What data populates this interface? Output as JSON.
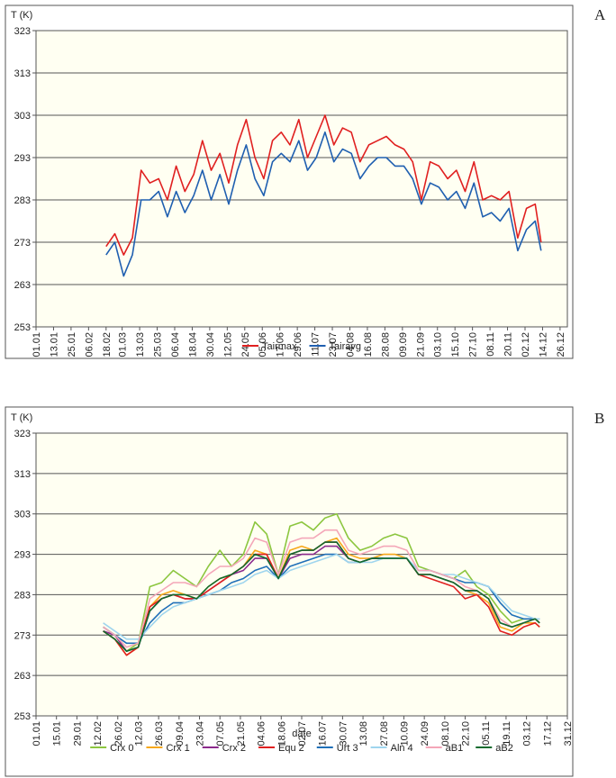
{
  "chart_data": [
    {
      "type": "line",
      "label": "A",
      "ylabel": "T (K)",
      "x": [
        "18.02",
        "24.02",
        "02.03",
        "08.03",
        "14.03",
        "20.03",
        "26.03",
        "01.04",
        "07.04",
        "13.04",
        "19.04",
        "25.04",
        "01.05",
        "07.05",
        "13.05",
        "19.05",
        "25.05",
        "31.05",
        "06.06",
        "12.06",
        "18.06",
        "24.06",
        "30.06",
        "06.07",
        "12.07",
        "18.07",
        "24.07",
        "30.07",
        "05.08",
        "11.08",
        "17.08",
        "23.08",
        "29.08",
        "04.09",
        "10.09",
        "16.09",
        "22.09",
        "28.09",
        "04.10",
        "10.10",
        "16.10",
        "22.10",
        "28.10",
        "03.11",
        "09.11",
        "15.11",
        "21.11",
        "27.11",
        "03.12",
        "09.12",
        "13.12"
      ],
      "series": [
        {
          "name": "Tairmax",
          "color": "#e02020",
          "values": [
            272,
            275,
            270,
            274,
            290,
            287,
            288,
            283,
            291,
            285,
            289,
            297,
            290,
            294,
            287,
            296,
            302,
            293,
            288,
            297,
            299,
            296,
            302,
            293,
            298,
            303,
            296,
            300,
            299,
            292,
            296,
            297,
            298,
            296,
            295,
            292,
            283,
            292,
            291,
            288,
            290,
            285,
            292,
            283,
            284,
            283,
            285,
            274,
            281,
            282,
            273
          ]
        },
        {
          "name": "Tairavg",
          "color": "#1f5fb0",
          "values": [
            270,
            273,
            265,
            270,
            283,
            283,
            285,
            279,
            285,
            280,
            284,
            290,
            283,
            289,
            282,
            290,
            296,
            288,
            284,
            292,
            294,
            292,
            297,
            290,
            293,
            299,
            292,
            295,
            294,
            288,
            291,
            293,
            293,
            291,
            291,
            288,
            282,
            287,
            286,
            283,
            285,
            281,
            287,
            279,
            280,
            278,
            281,
            271,
            276,
            278,
            271
          ]
        }
      ],
      "xlim": [
        "01.01",
        "31.12"
      ],
      "xticks": [
        "01.01",
        "13.01",
        "25.01",
        "06.02",
        "18.02",
        "01.03",
        "13.03",
        "25.03",
        "06.04",
        "18.04",
        "30.04",
        "12.05",
        "24.05",
        "05.06",
        "17.06",
        "29.06",
        "11.07",
        "23.07",
        "04.08",
        "16.08",
        "28.08",
        "09.09",
        "21.09",
        "03.10",
        "15.10",
        "27.10",
        "08.11",
        "20.11",
        "02.12",
        "14.12",
        "26.12"
      ],
      "ylim": [
        253,
        323
      ],
      "yticks": [
        253,
        263,
        273,
        283,
        293,
        303,
        313,
        323
      ],
      "grid": true
    },
    {
      "type": "line",
      "label": "B",
      "ylabel": "T (K)",
      "xlabel": "date",
      "x": [
        "16.02",
        "24.02",
        "04.03",
        "12.03",
        "20.03",
        "28.03",
        "05.04",
        "13.04",
        "21.04",
        "29.04",
        "07.05",
        "15.05",
        "23.05",
        "31.05",
        "08.06",
        "16.06",
        "24.06",
        "02.07",
        "10.07",
        "18.07",
        "26.07",
        "03.08",
        "11.08",
        "19.08",
        "27.08",
        "04.09",
        "12.09",
        "20.09",
        "28.09",
        "06.10",
        "14.10",
        "22.10",
        "30.10",
        "07.11",
        "15.11",
        "23.11",
        "01.12",
        "09.12",
        "12.12"
      ],
      "series": [
        {
          "name": "Crx 0",
          "color": "#8cc63f",
          "values": [
            275,
            273,
            269,
            271,
            285,
            286,
            289,
            287,
            285,
            290,
            294,
            290,
            293,
            301,
            298,
            288,
            300,
            301,
            299,
            302,
            303,
            297,
            294,
            295,
            297,
            298,
            297,
            290,
            289,
            288,
            287,
            289,
            285,
            283,
            279,
            276,
            277,
            277,
            276
          ]
        },
        {
          "name": "Crx 1",
          "color": "#f7a81b",
          "values": [
            274,
            272,
            268,
            270,
            280,
            283,
            284,
            283,
            282,
            285,
            287,
            288,
            290,
            294,
            293,
            287,
            294,
            295,
            294,
            296,
            297,
            293,
            292,
            292,
            293,
            293,
            292,
            288,
            288,
            287,
            286,
            284,
            283,
            281,
            275,
            274,
            276,
            276,
            275
          ]
        },
        {
          "name": "Crx 2",
          "color": "#8b2a8c",
          "values": [
            274,
            273,
            269,
            270,
            279,
            282,
            283,
            282,
            282,
            284,
            286,
            288,
            289,
            292,
            292,
            287,
            292,
            293,
            293,
            295,
            295,
            292,
            291,
            292,
            292,
            292,
            292,
            288,
            288,
            287,
            286,
            284,
            284,
            282,
            276,
            275,
            276,
            277,
            276
          ]
        },
        {
          "name": "Equ 2",
          "color": "#e02020",
          "values": [
            274,
            272,
            268,
            270,
            280,
            282,
            283,
            282,
            282,
            284,
            286,
            288,
            290,
            293,
            293,
            287,
            293,
            294,
            294,
            296,
            296,
            292,
            291,
            292,
            292,
            292,
            292,
            288,
            287,
            286,
            285,
            282,
            283,
            280,
            274,
            273,
            275,
            276,
            275
          ]
        },
        {
          "name": "Urt 3",
          "color": "#1f6fb8",
          "values": [
            275,
            273,
            271,
            271,
            276,
            279,
            281,
            281,
            282,
            283,
            284,
            286,
            287,
            289,
            290,
            287,
            290,
            291,
            292,
            293,
            293,
            291,
            291,
            292,
            292,
            292,
            292,
            289,
            289,
            288,
            287,
            286,
            286,
            285,
            281,
            278,
            277,
            277,
            277
          ]
        },
        {
          "name": "Aln 4",
          "color": "#9fd5ee",
          "values": [
            276,
            274,
            272,
            272,
            275,
            278,
            280,
            281,
            282,
            283,
            284,
            285,
            286,
            288,
            289,
            287,
            289,
            290,
            291,
            292,
            293,
            291,
            291,
            291,
            292,
            292,
            292,
            289,
            289,
            288,
            288,
            287,
            286,
            285,
            282,
            279,
            278,
            277,
            277
          ]
        },
        {
          "name": "aB1",
          "color": "#f4a6b8",
          "values": [
            275,
            273,
            270,
            271,
            282,
            284,
            286,
            286,
            285,
            288,
            290,
            290,
            292,
            297,
            296,
            288,
            296,
            297,
            297,
            299,
            299,
            294,
            293,
            294,
            295,
            295,
            294,
            289,
            289,
            288,
            287,
            285,
            284,
            282,
            277,
            275,
            276,
            277,
            276
          ]
        },
        {
          "name": "aB2",
          "color": "#0e6b2e",
          "values": [
            274,
            272,
            269,
            270,
            279,
            282,
            283,
            283,
            282,
            285,
            287,
            288,
            290,
            293,
            292,
            287,
            293,
            294,
            294,
            296,
            296,
            292,
            291,
            292,
            292,
            292,
            292,
            288,
            288,
            287,
            286,
            284,
            284,
            282,
            276,
            275,
            276,
            277,
            276
          ]
        }
      ],
      "xlim": [
        "01.01",
        "31.12"
      ],
      "xticks": [
        "01.01",
        "15.01",
        "29.01",
        "12.02",
        "26.02",
        "12.03",
        "26.03",
        "09.04",
        "23.04",
        "07.05",
        "21.05",
        "04.06",
        "18.06",
        "02.07",
        "16.07",
        "30.07",
        "13.08",
        "27.08",
        "10.09",
        "24.09",
        "08.10",
        "22.10",
        "05.11",
        "19.11",
        "03.12",
        "17.12",
        "31.12"
      ],
      "ylim": [
        253,
        323
      ],
      "yticks": [
        253,
        263,
        273,
        283,
        293,
        303,
        313,
        323
      ],
      "grid": true
    }
  ]
}
